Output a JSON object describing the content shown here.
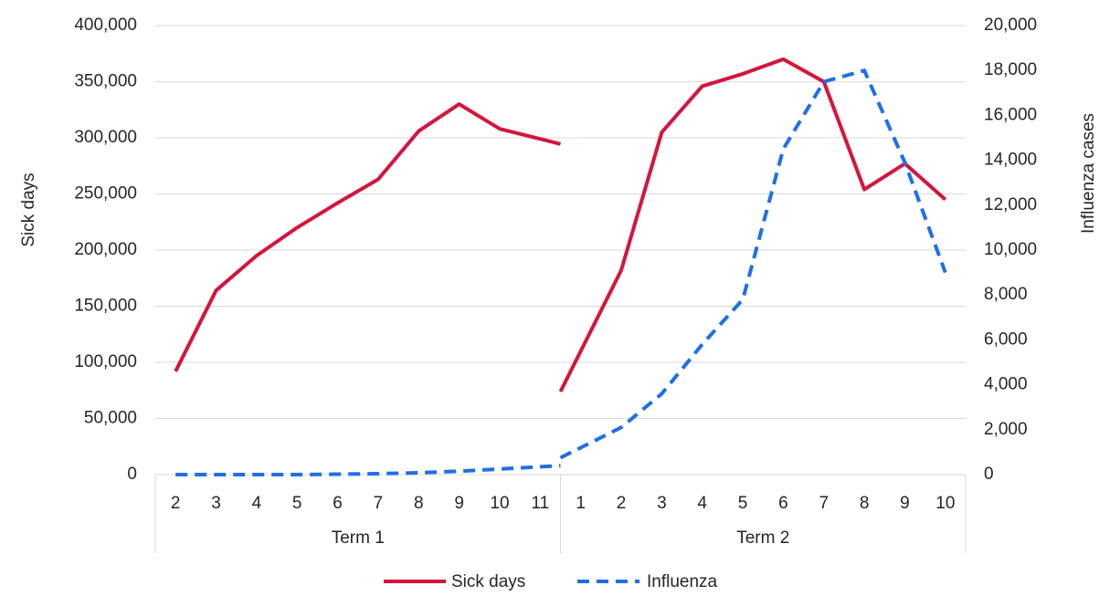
{
  "chart_data": {
    "type": "line",
    "title": "",
    "groups": [
      {
        "label": "Term 1",
        "categories": [
          "2",
          "3",
          "4",
          "5",
          "6",
          "7",
          "8",
          "9",
          "10",
          "11"
        ]
      },
      {
        "label": "Term 2",
        "categories": [
          "1",
          "2",
          "3",
          "4",
          "5",
          "6",
          "7",
          "8",
          "9",
          "10"
        ]
      }
    ],
    "ylabel_left": "Sick days",
    "ylabel_right": "Influenza cases",
    "ylim_left": [
      0,
      400000
    ],
    "ylim_right": [
      0,
      20000
    ],
    "yticks_left": [
      "0",
      "50,000",
      "100,000",
      "150,000",
      "200,000",
      "250,000",
      "300,000",
      "350,000",
      "400,000"
    ],
    "yticks_right": [
      "0",
      "2,000",
      "4,000",
      "6,000",
      "8,000",
      "10,000",
      "12,000",
      "14,000",
      "16,000",
      "18,000",
      "20,000"
    ],
    "grid": true,
    "legend_position": "bottom",
    "series": [
      {
        "name": "Sick days",
        "axis": "left",
        "color": "#D6143C",
        "style": "solid",
        "values_by_group": [
          [
            92000,
            164000,
            195000,
            220000,
            242000,
            263000,
            306000,
            330000,
            308000,
            299000
          ],
          [
            110000,
            182000,
            305000,
            346000,
            357000,
            370000,
            350000,
            254000,
            277000,
            245000
          ]
        ]
      },
      {
        "name": "Influenza",
        "axis": "right",
        "color": "#1F6FE8",
        "style": "dashed",
        "values_by_group": [
          [
            0,
            0,
            0,
            0,
            20,
            40,
            80,
            150,
            250,
            350
          ],
          [
            1200,
            2100,
            3600,
            5800,
            7800,
            14500,
            17500,
            18000,
            13900,
            9000
          ]
        ]
      }
    ]
  }
}
